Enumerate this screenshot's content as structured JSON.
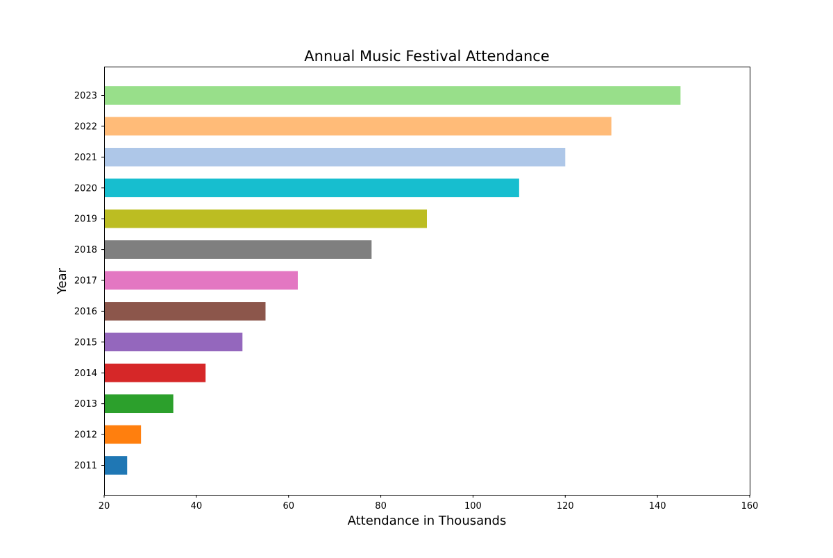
{
  "chart_data": {
    "type": "bar",
    "orientation": "horizontal",
    "title": "Annual Music Festival Attendance",
    "xlabel": "Attendance in Thousands",
    "ylabel": "Year",
    "xlim": [
      20,
      160
    ],
    "xticks": [
      20,
      40,
      60,
      80,
      100,
      120,
      140,
      160
    ],
    "grid": false,
    "legend": "none",
    "categories": [
      "2011",
      "2012",
      "2013",
      "2014",
      "2015",
      "2016",
      "2017",
      "2018",
      "2019",
      "2020",
      "2021",
      "2022",
      "2023"
    ],
    "values": [
      25,
      28,
      35,
      42,
      50,
      55,
      62,
      78,
      90,
      110,
      120,
      130,
      145
    ],
    "colors": [
      "#1f77b4",
      "#ff7f0e",
      "#2ca02c",
      "#d62728",
      "#9467bd",
      "#8c564b",
      "#e377c2",
      "#7f7f7f",
      "#bcbd22",
      "#17becf",
      "#aec7e8",
      "#ffbb78",
      "#98df8a"
    ]
  }
}
